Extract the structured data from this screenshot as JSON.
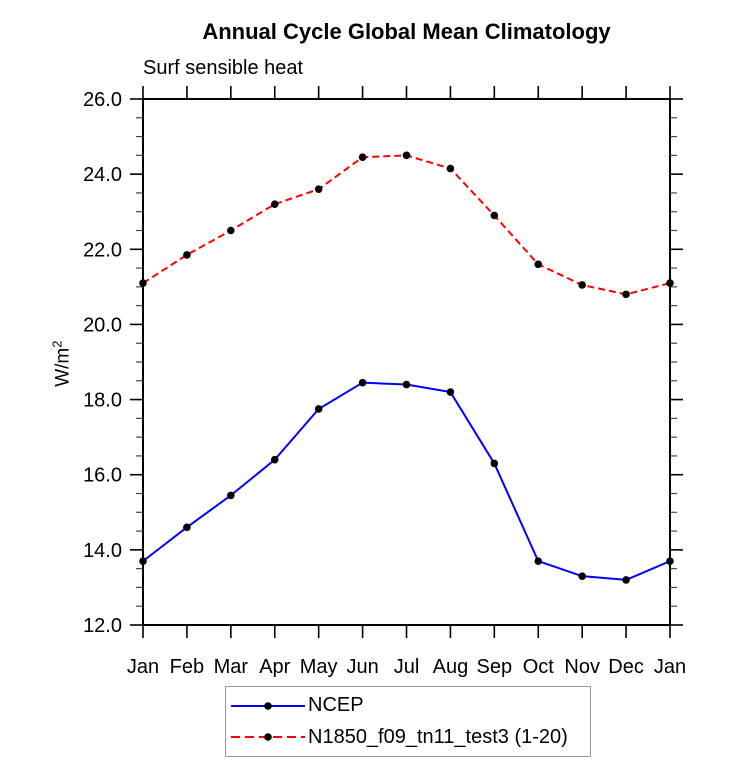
{
  "chart_data": {
    "type": "line",
    "title": "Annual Cycle Global Mean Climatology",
    "subtitle": "Surf sensible heat",
    "ylabel": "W/m²",
    "ylabel_parts": {
      "base": "W/m",
      "exp": "2"
    },
    "x_categories": [
      "Jan",
      "Feb",
      "Mar",
      "Apr",
      "May",
      "Jun",
      "Jul",
      "Aug",
      "Sep",
      "Oct",
      "Nov",
      "Dec",
      "Jan"
    ],
    "ylim": [
      12.0,
      26.0
    ],
    "y_major_step": 2.0,
    "y_minor_step": 0.5,
    "y_tick_labels": [
      "12.0",
      "14.0",
      "16.0",
      "18.0",
      "20.0",
      "22.0",
      "24.0",
      "26.0"
    ],
    "grid": false,
    "legend_position": "bottom-center",
    "marker": {
      "shape": "circle",
      "color": "#000000"
    },
    "series": [
      {
        "name": "NCEP",
        "color": "#0000ff",
        "line_style": "solid",
        "values": [
          13.7,
          14.6,
          15.45,
          16.4,
          17.75,
          18.45,
          18.4,
          18.2,
          16.3,
          13.7,
          13.3,
          13.2,
          13.7
        ]
      },
      {
        "name": "N1850_f09_tn11_test3 (1-20)",
        "color": "#ff0000",
        "line_style": "dashed",
        "values": [
          21.1,
          21.85,
          22.5,
          23.2,
          23.6,
          24.45,
          24.5,
          24.15,
          22.9,
          21.6,
          21.05,
          20.8,
          21.1
        ]
      }
    ]
  }
}
